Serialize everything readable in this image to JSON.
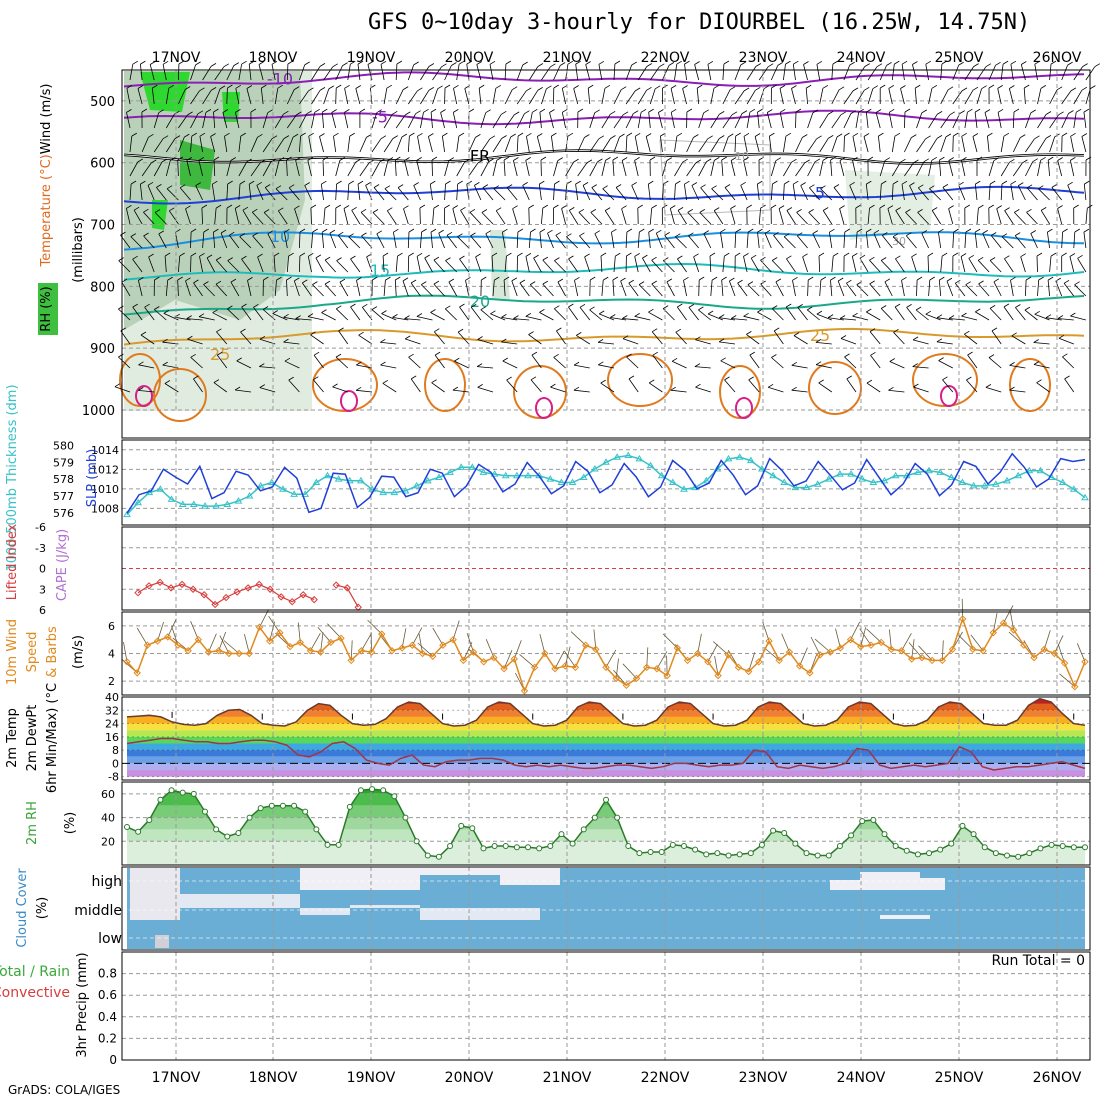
{
  "title": "GFS 0~10day 3-hourly for DIOURBEL (16.25W, 14.75N)",
  "credit": "GrADS: COLA/IGES",
  "dates": [
    "17NOV",
    "18NOV",
    "19NOV",
    "20NOV",
    "21NOV",
    "22NOV",
    "23NOV",
    "24NOV",
    "25NOV",
    "26NOV"
  ],
  "colors": {
    "grid": "#9a9a9a",
    "slp": "#1f3fd8",
    "thickness": "#37c2c8",
    "lifted": "#d83c3c",
    "wind": "#e08a1e",
    "rh": "#3aa43a",
    "cloud": "#6aaed6",
    "dew": "#a0344a",
    "rhfill_dark": "#5fbf5f",
    "rhfill_light": "#e6f4e6",
    "cloud_light": "#efeff5"
  },
  "chart_data": [
    {
      "panel": "upper_air",
      "type": "heatmap",
      "ylabel_parts": [
        "Wind (m/s)",
        "Temperature (°C)",
        "RH (%)"
      ],
      "ylabel2": "(millibars)",
      "y_ticks": [
        "500",
        "600",
        "700",
        "800",
        "900",
        "1000"
      ],
      "ylim": [
        1000,
        450
      ],
      "isotherms": [
        {
          "label": "-10",
          "color": "#8b1fb5",
          "level_mb": 465
        },
        {
          "label": "-5",
          "color": "#8b1fb5",
          "level_mb": 527
        },
        {
          "label": "FR",
          "color": "#000000",
          "level_mb": 590
        },
        {
          "label": "5",
          "color": "#1f3fd8",
          "level_mb": 650
        },
        {
          "label": "10",
          "color": "#1a8fe0",
          "level_mb": 720
        },
        {
          "label": "15",
          "color": "#1fbcbc",
          "level_mb": 775
        },
        {
          "label": "20",
          "color": "#1aa88a",
          "level_mb": 825
        },
        {
          "label": "25",
          "color": "#d89a2a",
          "level_mb": 880
        }
      ],
      "extra_labels": [
        "10",
        "30"
      ]
    },
    {
      "panel": "slp_thickness",
      "type": "line",
      "ylabel_left": "1000-500mb Thickness (dm)",
      "ylabel_right": "SLP (mb)",
      "y_ticks_left": [
        "580",
        "579",
        "578",
        "577",
        "576"
      ],
      "y_ticks_right": [
        "1014",
        "1012",
        "1010",
        "1008"
      ],
      "ylim_left": [
        575.4,
        580.2
      ],
      "ylim_right": [
        1006.5,
        1014.8
      ],
      "series": [
        {
          "name": "SLP (mb)",
          "axis": "right",
          "values": [
            1007.5,
            1009.4,
            1009.8,
            1012.0,
            1011.2,
            1010.5,
            1012.3,
            1009.0,
            1009.6,
            1011.8,
            1011.4,
            1009.8,
            1010.2,
            1012.2,
            1011.1,
            1007.6,
            1008.0,
            1011.6,
            1011.5,
            1008.1,
            1009.1,
            1011.3,
            1011.2,
            1009.2,
            1009.6,
            1012.0,
            1011.6,
            1009.2,
            1010.3,
            1012.5,
            1011.7,
            1009.7,
            1010.5,
            1012.7,
            1011.3,
            1009.5,
            1010.3,
            1012.8,
            1011.8,
            1009.6,
            1010.4,
            1012.6,
            1011.2,
            1009.2,
            1010.2,
            1012.9,
            1011.9,
            1010.0,
            1010.6,
            1012.9,
            1011.4,
            1009.4,
            1010.3,
            1013.1,
            1011.9,
            1010.3,
            1010.8,
            1012.8,
            1011.4,
            1009.9,
            1010.6,
            1013.0,
            1011.2,
            1009.4,
            1010.5,
            1012.6,
            1011.5,
            1009.3,
            1010.4,
            1012.8,
            1012.3,
            1010.5,
            1011.7,
            1013.6,
            1012.2,
            1010.2,
            1011.0,
            1013.1,
            1012.8,
            1013.0
          ]
        },
        {
          "name": "1000-500mb Thickness (dm)",
          "axis": "left",
          "values": [
            575.9,
            576.6,
            577.2,
            577.4,
            576.8,
            576.5,
            576.5,
            576.4,
            576.4,
            576.5,
            576.7,
            577.0,
            577.6,
            577.8,
            577.4,
            577.1,
            577.1,
            577.8,
            578.2,
            578.0,
            577.9,
            577.9,
            577.4,
            577.2,
            577.2,
            577.3,
            577.6,
            577.9,
            578.1,
            578.4,
            578.7,
            578.7,
            578.4,
            578.3,
            578.2,
            578.2,
            578.2,
            578.2,
            578.0,
            577.8,
            577.8,
            578.1,
            578.6,
            579.0,
            579.3,
            579.4,
            579.2,
            578.8,
            578.2,
            577.8,
            577.4,
            577.5,
            577.9,
            578.6,
            579.2,
            579.3,
            579.1,
            578.6,
            578.2,
            577.8,
            577.5,
            577.5,
            577.7,
            578.0,
            578.3,
            578.3,
            578.0,
            577.8,
            577.9,
            578.2,
            578.2,
            578.4,
            578.5,
            578.4,
            578.1,
            577.8,
            577.6,
            577.6,
            577.7,
            577.9,
            578.2,
            578.5,
            578.5,
            578.1,
            577.8,
            577.4,
            576.9
          ]
        }
      ]
    },
    {
      "panel": "lifted_cape",
      "type": "line",
      "ylabel_left": "Lifted Index",
      "ylabel_right": "CAPE (J/kg)",
      "y_ticks": [
        "-6",
        "-3",
        "0",
        "3",
        "6"
      ],
      "ylim": [
        -6,
        6
      ],
      "series": [
        {
          "name": "Lifted Index",
          "values": [
            3.5,
            2.5,
            2.0,
            2.8,
            2.3,
            3.0,
            3.8,
            5.2,
            4.2,
            3.4,
            2.8,
            2.3,
            3.0,
            4.1,
            4.8,
            3.8,
            4.5,
            null,
            2.4,
            2.8,
            5.6
          ]
        }
      ]
    },
    {
      "panel": "wind10m",
      "type": "line",
      "ylabel": "10m Wind Speed & Barbs (m/s)",
      "y_ticks": [
        "6",
        "4",
        "2"
      ],
      "ylim": [
        1,
        7
      ],
      "series": [
        {
          "name": "10m Wind Speed",
          "values": [
            3.4,
            2.6,
            4.6,
            4.9,
            5.2,
            4.6,
            4.2,
            5.0,
            4.1,
            4.2,
            4.0,
            4.0,
            4.0,
            5.9,
            4.9,
            5.5,
            4.5,
            4.8,
            4.2,
            4.1,
            4.8,
            5.1,
            3.5,
            4.2,
            4.1,
            5.4,
            4.2,
            4.4,
            4.6,
            4.0,
            3.8,
            4.6,
            5.0,
            3.5,
            4.1,
            3.4,
            3.7,
            2.9,
            3.6,
            1.3,
            3.0,
            4.0,
            2.9,
            3.1,
            3.0,
            4.6,
            4.3,
            3.0,
            2.2,
            1.7,
            2.2,
            3.0,
            2.9,
            2.4,
            4.4,
            3.5,
            4.0,
            3.4,
            2.4,
            3.9,
            3.0,
            2.7,
            3.4,
            4.9,
            3.5,
            4.1,
            3.1,
            2.6,
            3.9,
            4.1,
            4.4,
            5.0,
            4.5,
            4.6,
            4.8,
            4.3,
            4.2,
            3.6,
            3.7,
            3.5,
            3.5,
            4.3,
            6.5,
            4.3,
            4.2,
            5.5,
            6.2,
            5.7,
            4.6,
            3.7,
            4.3,
            4.0,
            3.3,
            1.6,
            3.4
          ]
        }
      ]
    },
    {
      "panel": "temp2m",
      "type": "area",
      "ylabel": "2m Temp 2m DewPt (6hr Min/Max) (°C)",
      "y_ticks": [
        "40",
        "32",
        "24",
        "16",
        "8",
        "0",
        "-8"
      ],
      "ylim": [
        -10,
        40
      ],
      "series": [
        {
          "name": "2m Temp",
          "values": [
            28,
            28.5,
            29,
            28,
            25,
            23.5,
            23,
            24,
            29,
            32,
            32.5,
            29,
            24,
            23,
            22.5,
            25,
            32,
            36,
            35,
            29,
            24,
            23,
            23.5,
            27,
            34,
            37,
            36,
            30,
            24,
            22.5,
            23,
            26,
            34,
            37,
            36,
            30,
            24,
            22.5,
            23,
            26,
            34,
            37,
            36,
            30,
            24,
            22.5,
            23,
            26,
            34,
            37,
            36,
            30,
            24,
            22.5,
            23,
            26,
            34,
            37,
            36,
            30,
            24,
            22.5,
            23,
            26,
            34,
            37,
            36,
            30,
            24,
            22.5,
            23,
            26,
            34,
            37,
            36,
            30,
            24,
            23,
            23,
            26,
            35,
            39,
            37,
            30,
            24,
            23
          ]
        },
        {
          "name": "2m DewPt",
          "values": [
            12,
            13,
            14,
            15,
            15,
            14,
            13,
            13,
            12,
            12,
            13,
            14,
            14,
            13,
            11,
            5,
            4,
            7,
            12,
            13,
            9,
            2,
            0,
            -1,
            3,
            5,
            -1,
            -2,
            1,
            2,
            2,
            3,
            3,
            2,
            -1,
            -2,
            -1,
            -2,
            -1,
            -2,
            -3,
            -3,
            -2,
            -1,
            -1,
            -2,
            -3,
            -2,
            0,
            0,
            -1,
            -2,
            -1,
            -1,
            0,
            8,
            7,
            -2,
            -3,
            -1,
            -2,
            -3,
            -2,
            0,
            9,
            8,
            -1,
            -3,
            -2,
            -1,
            -2,
            -1,
            0,
            10,
            7,
            -2,
            -4,
            -3,
            -2,
            -2,
            -1,
            0,
            1,
            -1,
            -3
          ]
        }
      ]
    },
    {
      "panel": "rh2m",
      "type": "area",
      "ylabel": "2m RH (%)",
      "y_ticks": [
        "60",
        "40",
        "20"
      ],
      "ylim": [
        0,
        70
      ],
      "series": [
        {
          "name": "2m RH",
          "values": [
            32,
            28,
            38,
            55,
            63,
            61,
            60,
            45,
            30,
            24,
            27,
            40,
            48,
            50,
            50,
            50,
            45,
            30,
            17,
            17,
            49,
            63,
            64,
            63,
            58,
            40,
            20,
            8,
            7,
            16,
            33,
            31,
            14,
            16,
            16,
            15,
            15,
            14,
            16,
            26,
            18,
            30,
            40,
            55,
            40,
            16,
            10,
            11,
            11,
            17,
            16,
            13,
            9,
            10,
            8,
            9,
            10,
            17,
            29,
            27,
            18,
            10,
            8,
            8,
            16,
            25,
            37,
            38,
            26,
            16,
            12,
            9,
            10,
            13,
            18,
            33,
            26,
            15,
            10,
            8,
            7,
            10,
            14,
            17,
            16,
            15,
            15
          ]
        }
      ]
    },
    {
      "panel": "cloud",
      "type": "heatmap",
      "ylabel": "Cloud Cover (%)",
      "y_ticks": [
        "high",
        "middle",
        "low"
      ]
    },
    {
      "panel": "precip",
      "type": "bar",
      "ylabel_left": "3hr Precip (mm)",
      "legend_parts": [
        "Total / Rain",
        "Convective"
      ],
      "y_ticks": [
        "0.8",
        "0.6",
        "0.4",
        "0.2",
        "0"
      ],
      "ylim": [
        0,
        1
      ],
      "run_total": "Run Total = 0",
      "values": []
    }
  ]
}
